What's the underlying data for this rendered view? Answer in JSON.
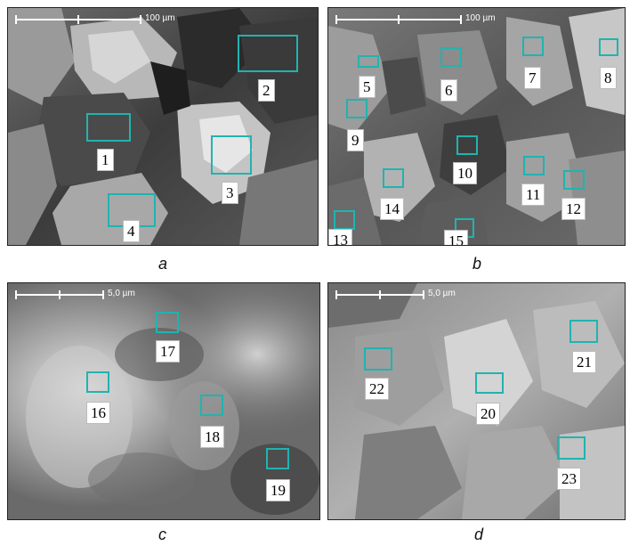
{
  "panels": {
    "a": {
      "scale_label": "100 µm",
      "caption": "a",
      "markers": [
        "1",
        "2",
        "3",
        "4"
      ]
    },
    "b": {
      "scale_label": "100 µm",
      "caption": "b",
      "markers": [
        "5",
        "6",
        "7",
        "8",
        "9",
        "10",
        "11",
        "12",
        "13",
        "14",
        "15"
      ]
    },
    "c": {
      "scale_label": "5,0 µm",
      "caption": "c",
      "markers": [
        "16",
        "17",
        "18",
        "19"
      ]
    },
    "d": {
      "scale_label": "5,0 µm",
      "caption": "d",
      "markers": [
        "20",
        "21",
        "22",
        "23"
      ]
    }
  },
  "colors": {
    "marker_box": "#21b3b0",
    "label_bg": "#ffffff"
  }
}
